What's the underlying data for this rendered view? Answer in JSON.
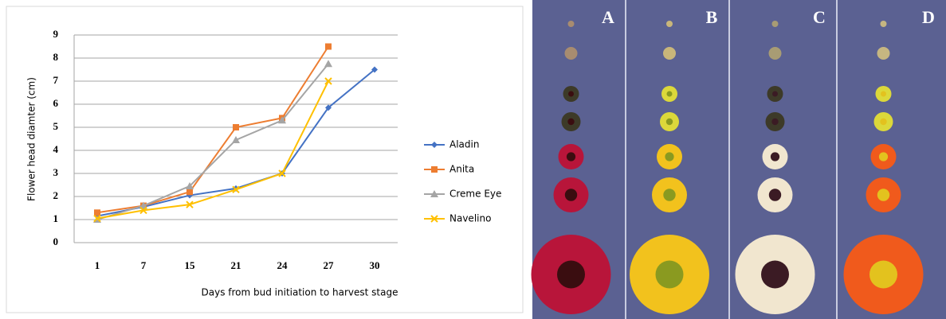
{
  "chart_data": {
    "type": "line",
    "y_label": "Flower head diamter (cm)",
    "x_label": "Days from bud initiation to harvest stage",
    "categories": [
      "1",
      "7",
      "15",
      "21",
      "24",
      "27",
      "30"
    ],
    "series": [
      {
        "name": "Aladin",
        "color": "#4472c4",
        "marker": "diamond",
        "values": [
          1.15,
          1.55,
          2.05,
          2.35,
          3.0,
          5.85,
          7.5
        ]
      },
      {
        "name": "Anita",
        "color": "#ed7d31",
        "marker": "square",
        "values": [
          1.3,
          1.6,
          2.2,
          5.0,
          5.4,
          8.5,
          null
        ]
      },
      {
        "name": "Creme Eye",
        "color": "#a5a5a5",
        "marker": "triangle",
        "values": [
          1.0,
          1.6,
          2.45,
          4.45,
          5.3,
          7.75,
          null
        ]
      },
      {
        "name": "Navelino",
        "color": "#ffc000",
        "marker": "cross",
        "values": [
          1.05,
          1.4,
          1.65,
          2.3,
          3.0,
          7.0,
          null
        ]
      }
    ],
    "ylim": [
      0,
      9
    ],
    "yticks": [
      0,
      1,
      2,
      3,
      4,
      5,
      6,
      7,
      8,
      9
    ],
    "grid": true,
    "legend": "right"
  },
  "photo": {
    "panels": [
      {
        "label": "A"
      },
      {
        "label": "B"
      },
      {
        "label": "C"
      },
      {
        "label": "D"
      }
    ]
  }
}
